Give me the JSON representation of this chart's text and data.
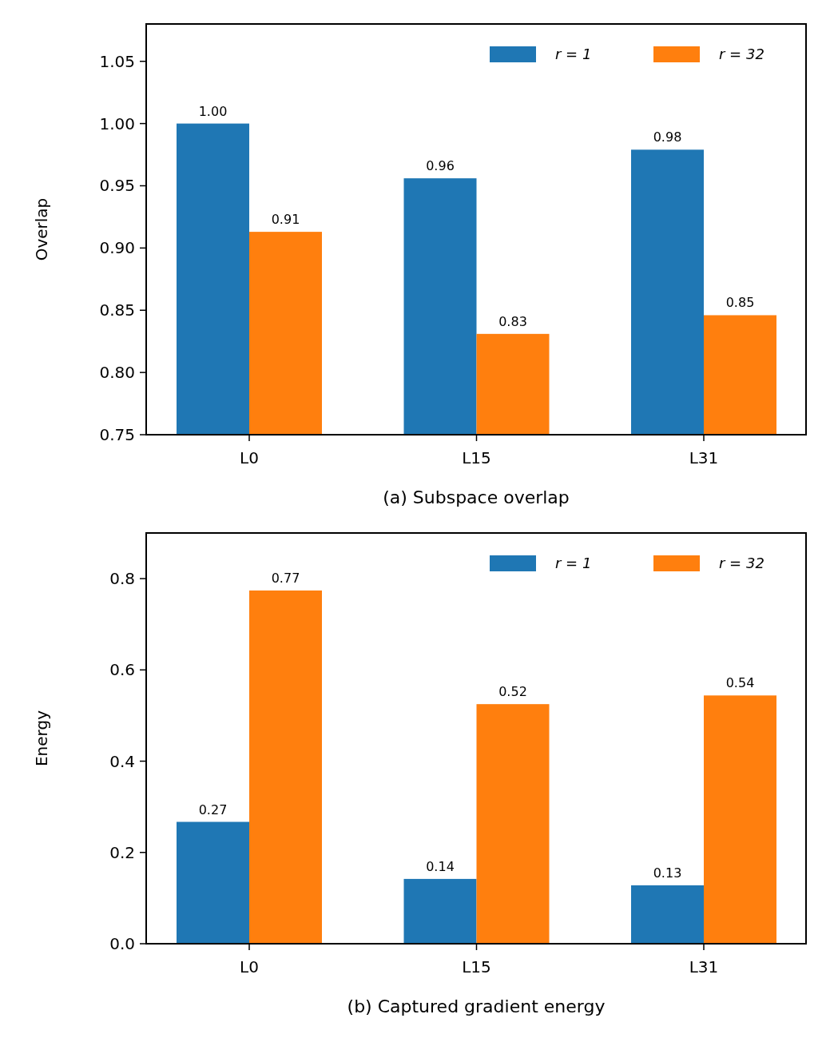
{
  "chart_data": [
    {
      "type": "bar",
      "xlabel": "(a) Subspace overlap",
      "ylabel": "Overlap",
      "categories": [
        "L0",
        "L15",
        "L31"
      ],
      "ylim": [
        0.75,
        1.08
      ],
      "yticks": [
        {
          "value": 0.75,
          "label": "0.75"
        },
        {
          "value": 0.8,
          "label": "0.80"
        },
        0.85,
        {
          "value": 0.9,
          "label": "0.90"
        },
        0.95,
        {
          "value": 1.0,
          "label": "1.00"
        },
        1.05
      ],
      "legend": "top right",
      "series": [
        {
          "name": "r = 1",
          "color": "#1f77b4",
          "values": [
            1.0,
            0.956,
            0.979
          ],
          "value_labels": [
            "1.00",
            "0.96",
            "0.98"
          ]
        },
        {
          "name": "r = 32",
          "color": "#ff7f0e",
          "values": [
            0.913,
            0.831,
            0.846
          ],
          "value_labels": [
            "0.91",
            "0.83",
            "0.85"
          ]
        }
      ]
    },
    {
      "type": "bar",
      "xlabel": "(b) Captured gradient energy",
      "ylabel": "Energy",
      "categories": [
        "L0",
        "L15",
        "L31"
      ],
      "ylim": [
        0,
        0.9
      ],
      "yticks": [
        {
          "value": 0,
          "label": "0.0"
        },
        0.2,
        0.4,
        0.6,
        0.8
      ],
      "legend": "top right",
      "series": [
        {
          "name": "r = 1",
          "color": "#1f77b4",
          "values": [
            0.267,
            0.142,
            0.128
          ],
          "value_labels": [
            "0.27",
            "0.14",
            "0.13"
          ]
        },
        {
          "name": "r = 32",
          "color": "#ff7f0e",
          "values": [
            0.774,
            0.525,
            0.544
          ],
          "value_labels": [
            "0.77",
            "0.52",
            "0.54"
          ]
        }
      ]
    }
  ]
}
